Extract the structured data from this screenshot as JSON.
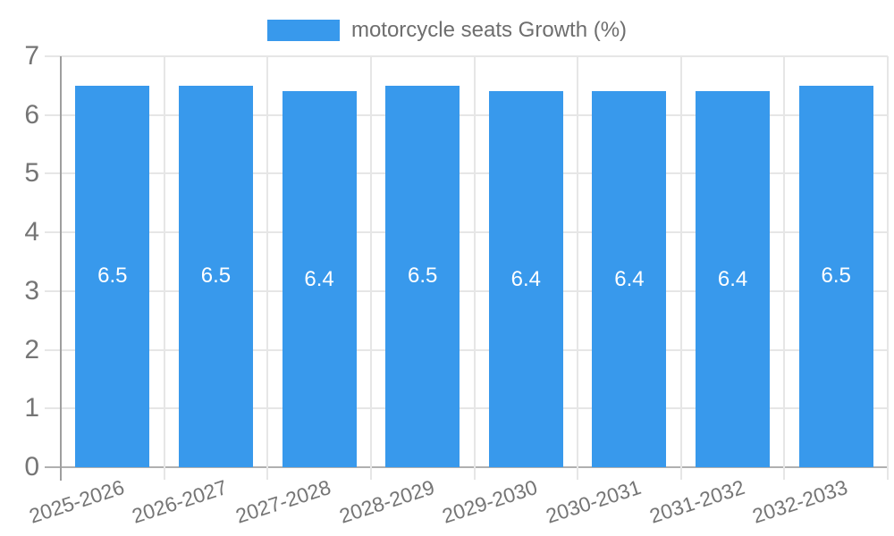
{
  "legend": {
    "label": "motorcycle seats Growth (%)"
  },
  "chart_data": {
    "type": "bar",
    "title": "motorcycle seats Growth (%)",
    "categories": [
      "2025-2026",
      "2026-2027",
      "2027-2028",
      "2028-2029",
      "2029-2030",
      "2030-2031",
      "2031-2032",
      "2032-2033"
    ],
    "series": [
      {
        "name": "motorcycle seats Growth (%)",
        "values": [
          6.5,
          6.5,
          6.4,
          6.5,
          6.4,
          6.4,
          6.4,
          6.5
        ],
        "data_labels": [
          "6.5",
          "6.5",
          "6.4",
          "6.5",
          "6.4",
          "6.4",
          "6.4",
          "6.5"
        ]
      }
    ],
    "xlabel": "",
    "ylabel": "",
    "ylim": [
      0,
      7
    ],
    "yticks": [
      0,
      1,
      2,
      3,
      4,
      5,
      6,
      7
    ],
    "grid": true,
    "legend_position": "top center",
    "colors": {
      "bar": "#3899EC",
      "gridline": "#e6e6e6",
      "axis_line": "#9e9e9e",
      "baseline": "#b0b0b0",
      "tick_text": "#757575",
      "data_label": "#ffffff",
      "background": "#ffffff"
    }
  }
}
